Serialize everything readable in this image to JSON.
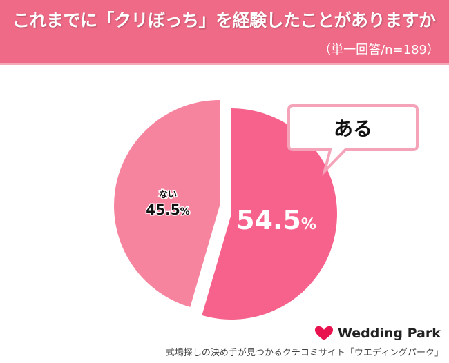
{
  "chart_data": {
    "type": "pie",
    "title": "これまでに「クリぼっち」を経験したことがありますか",
    "subtitle": "（単一回答/n=189）",
    "slices": [
      {
        "label": "ある",
        "value": 54.5,
        "display": "54.5",
        "color": "#f6628c"
      },
      {
        "label": "ない",
        "value": 45.5,
        "display": "45.5",
        "color": "#f7849f"
      }
    ],
    "unit": "%"
  },
  "brand": {
    "logo": "Wedding Park",
    "tagline": "式場探しの決め手が見つかるクチコミサイト「ウエディングパーク」",
    "color": "#e8124f"
  }
}
